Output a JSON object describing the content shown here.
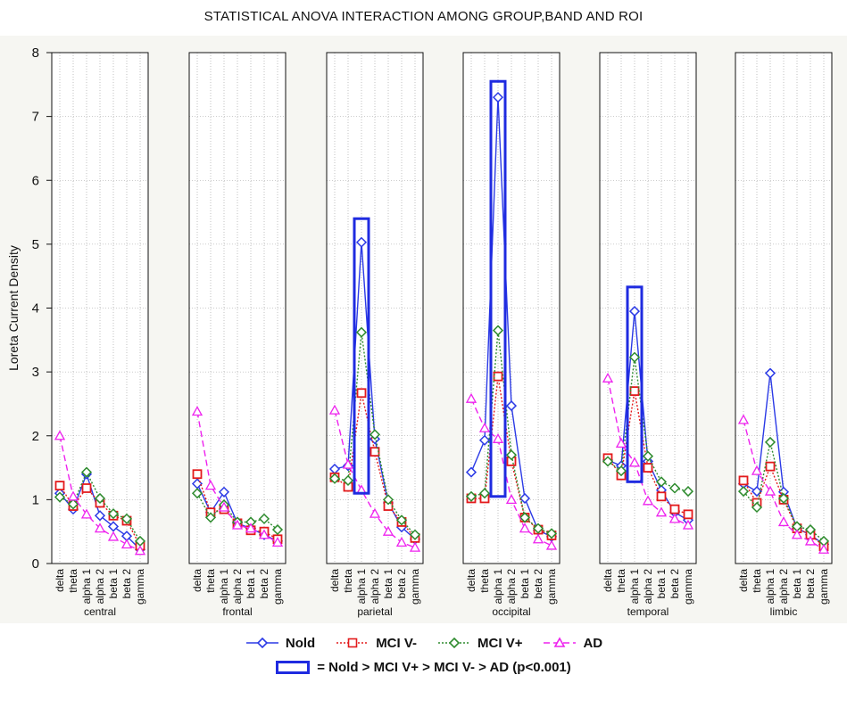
{
  "chart_data": {
    "type": "line",
    "title": "STATISTICAL ANOVA INTERACTION AMONG GROUP,BAND AND ROI",
    "ylabel": "Loreta Current Density",
    "ylim": [
      0,
      8
    ],
    "yticks": [
      "0",
      "1",
      "2",
      "3",
      "4",
      "5",
      "6",
      "7",
      "8"
    ],
    "grid": true,
    "bands": [
      "delta",
      "theta",
      "alpha 1",
      "alpha 2",
      "beta 1",
      "beta 2",
      "gamma"
    ],
    "panels": [
      {
        "roi": "central",
        "series": [
          {
            "name": "Nold",
            "values": [
              1.1,
              0.85,
              1.4,
              0.75,
              0.58,
              0.43,
              0.22
            ]
          },
          {
            "name": "MCI V-",
            "values": [
              1.22,
              0.9,
              1.18,
              0.95,
              0.75,
              0.67,
              0.28
            ]
          },
          {
            "name": "MCI V+",
            "values": [
              1.04,
              0.93,
              1.43,
              1.02,
              0.78,
              0.7,
              0.35
            ]
          },
          {
            "name": "AD",
            "values": [
              2.0,
              1.05,
              0.77,
              0.55,
              0.42,
              0.3,
              0.2
            ]
          }
        ]
      },
      {
        "roi": "frontal",
        "series": [
          {
            "name": "Nold",
            "values": [
              1.25,
              0.8,
              1.12,
              0.63,
              0.55,
              0.45,
              0.35
            ]
          },
          {
            "name": "MCI V-",
            "values": [
              1.4,
              0.8,
              0.85,
              0.63,
              0.52,
              0.5,
              0.38
            ]
          },
          {
            "name": "MCI V+",
            "values": [
              1.1,
              0.72,
              0.92,
              0.65,
              0.65,
              0.7,
              0.53
            ]
          },
          {
            "name": "AD",
            "values": [
              2.38,
              1.22,
              0.88,
              0.6,
              0.55,
              0.45,
              0.33
            ]
          }
        ]
      },
      {
        "roi": "parietal",
        "series": [
          {
            "name": "Nold",
            "values": [
              1.48,
              1.53,
              5.03,
              1.95,
              0.95,
              0.57,
              0.38
            ]
          },
          {
            "name": "MCI V-",
            "values": [
              1.35,
              1.2,
              2.67,
              1.75,
              0.9,
              0.65,
              0.4
            ]
          },
          {
            "name": "MCI V+",
            "values": [
              1.33,
              1.3,
              3.62,
              2.02,
              1.0,
              0.68,
              0.45
            ]
          },
          {
            "name": "AD",
            "values": [
              2.4,
              1.55,
              1.15,
              0.78,
              0.5,
              0.33,
              0.25
            ]
          }
        ]
      },
      {
        "roi": "occipital",
        "series": [
          {
            "name": "Nold",
            "values": [
              1.43,
              1.93,
              7.3,
              2.47,
              1.02,
              0.52,
              0.42
            ]
          },
          {
            "name": "MCI V-",
            "values": [
              1.02,
              1.02,
              2.93,
              1.6,
              0.72,
              0.53,
              0.44
            ]
          },
          {
            "name": "MCI V+",
            "values": [
              1.05,
              1.1,
              3.65,
              1.7,
              0.72,
              0.55,
              0.47
            ]
          },
          {
            "name": "AD",
            "values": [
              2.58,
              2.12,
              1.95,
              1.0,
              0.55,
              0.38,
              0.28
            ]
          }
        ]
      },
      {
        "roi": "temporal",
        "series": [
          {
            "name": "Nold",
            "values": [
              1.62,
              1.53,
              3.95,
              1.6,
              1.15,
              0.8,
              0.68
            ]
          },
          {
            "name": "MCI V-",
            "values": [
              1.65,
              1.38,
              2.7,
              1.5,
              1.05,
              0.85,
              0.77
            ]
          },
          {
            "name": "MCI V+",
            "values": [
              1.6,
              1.45,
              3.23,
              1.68,
              1.28,
              1.18,
              1.13
            ]
          },
          {
            "name": "AD",
            "values": [
              2.9,
              1.88,
              1.58,
              0.98,
              0.8,
              0.7,
              0.6
            ]
          }
        ]
      },
      {
        "roi": "limbic",
        "series": [
          {
            "name": "Nold",
            "values": [
              1.25,
              1.13,
              2.98,
              1.12,
              0.55,
              0.45,
              0.3
            ]
          },
          {
            "name": "MCI V-",
            "values": [
              1.3,
              0.95,
              1.52,
              1.0,
              0.55,
              0.45,
              0.27
            ]
          },
          {
            "name": "MCI V+",
            "values": [
              1.13,
              0.88,
              1.9,
              1.02,
              0.58,
              0.53,
              0.35
            ]
          },
          {
            "name": "AD",
            "values": [
              2.25,
              1.45,
              1.13,
              0.65,
              0.45,
              0.35,
              0.22
            ]
          }
        ]
      }
    ],
    "highlights": [
      {
        "roi": "parietal",
        "band": "alpha 1",
        "ymin": 1.1,
        "ymax": 5.4
      },
      {
        "roi": "occipital",
        "band": "alpha 1",
        "ymin": 1.05,
        "ymax": 7.55
      },
      {
        "roi": "temporal",
        "band": "alpha 1",
        "ymin": 1.28,
        "ymax": 4.33
      }
    ],
    "legend": {
      "entries": [
        {
          "name": "Nold",
          "color": "#2b3ae6",
          "marker": "diamond",
          "dash": "solid"
        },
        {
          "name": "MCI V-",
          "color": "#e31a1c",
          "marker": "square",
          "dash": "dotted"
        },
        {
          "name": "MCI V+",
          "color": "#2e8b2e",
          "marker": "diamond",
          "dash": "dotted"
        },
        {
          "name": "AD",
          "color": "#ee22ee",
          "marker": "triangle",
          "dash": "dashed"
        }
      ],
      "box_label": "= Nold > MCI V+ > MCI V- > AD (p<0.001)",
      "box_color": "#1f2be0",
      "placement": "bottom"
    }
  }
}
